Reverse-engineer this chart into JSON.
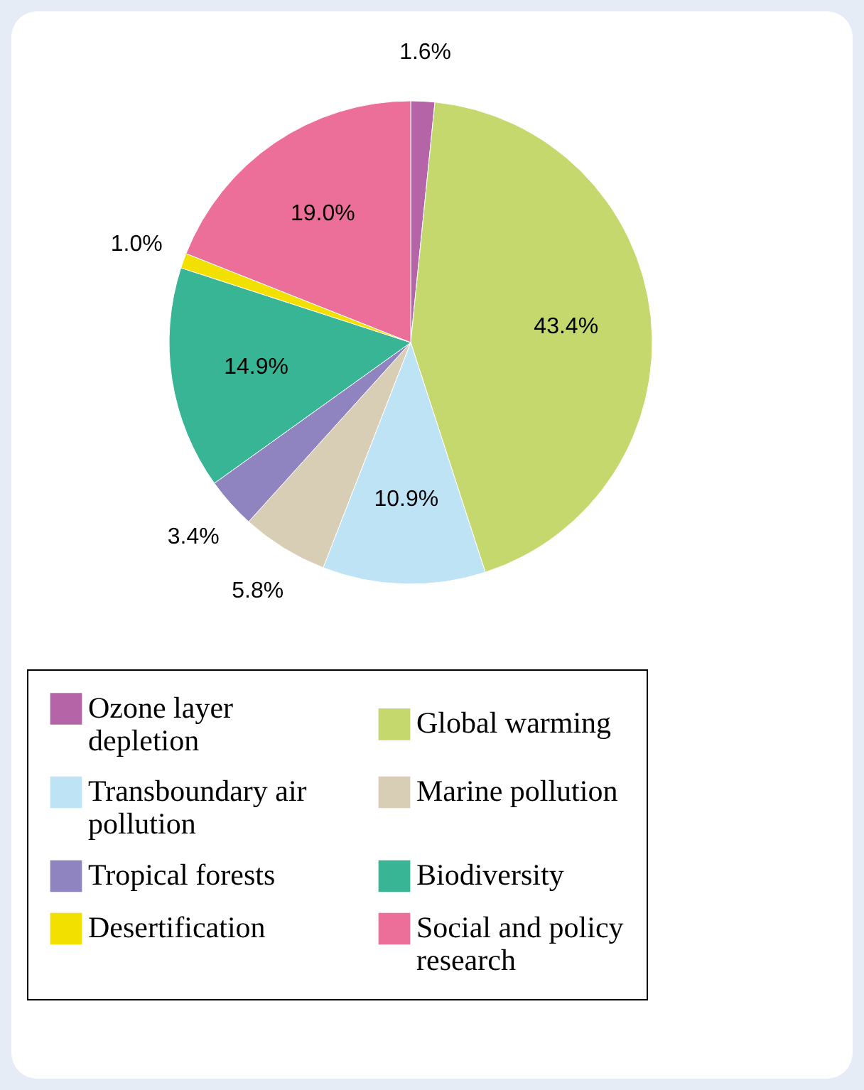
{
  "chart_data": {
    "type": "pie",
    "categories": [
      "Ozone layer depletion",
      "Global warming",
      "Transboundary air pollution",
      "Marine pollution",
      "Tropical forests",
      "Biodiversity",
      "Desertification",
      "Social and policy research"
    ],
    "values": [
      1.6,
      43.4,
      10.9,
      5.8,
      3.4,
      14.9,
      1.0,
      19.0
    ],
    "value_labels": [
      "1.6%",
      "43.4%",
      "10.9%",
      "5.8%",
      "3.4%",
      "14.9%",
      "1.0%",
      "19.0%"
    ],
    "colors": [
      "#b565a7",
      "#c5d86d",
      "#bde3f5",
      "#d8cdb5",
      "#8f83c0",
      "#37b595",
      "#f2e000",
      "#eb6f99"
    ],
    "legend": "bottom"
  }
}
